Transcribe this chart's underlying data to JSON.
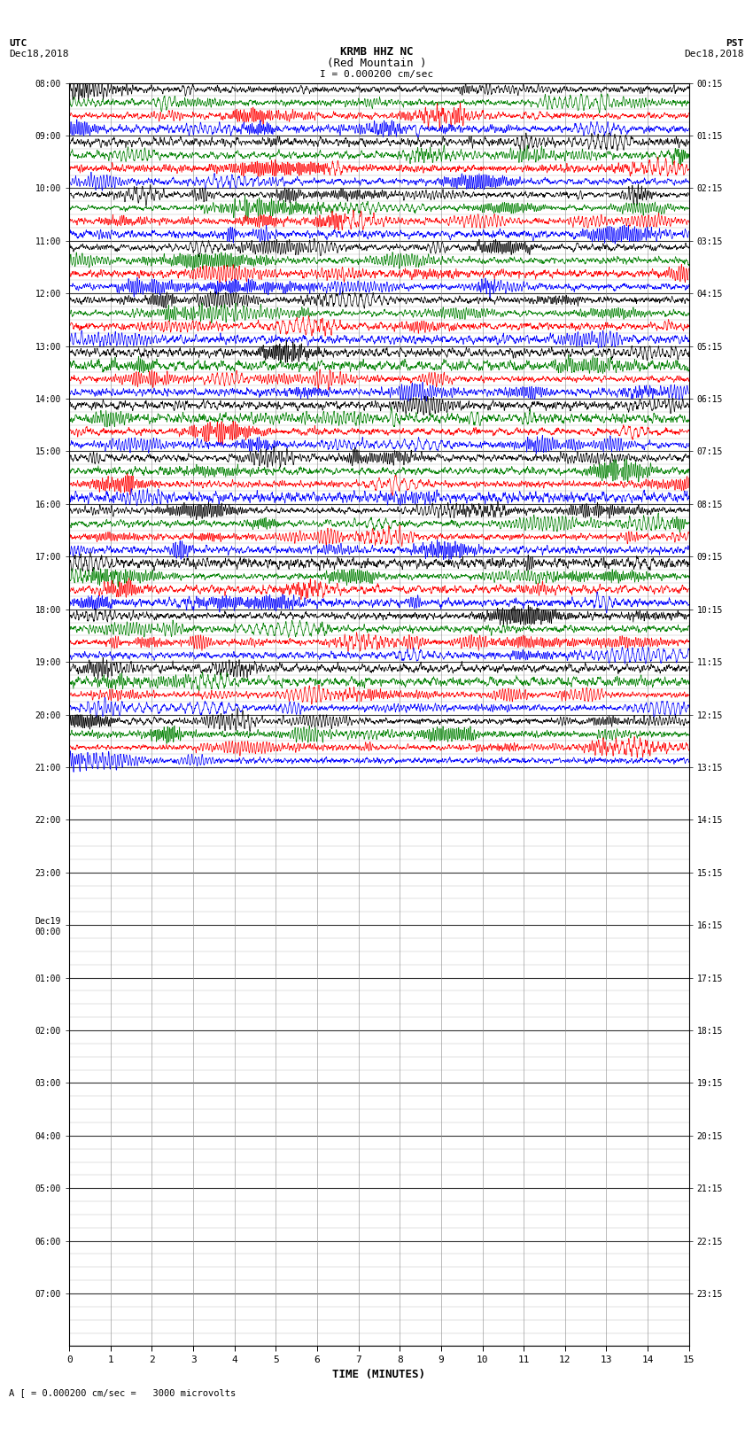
{
  "title_line1": "KRMB HHZ NC",
  "title_line2": "(Red Mountain )",
  "scale_label": "I = 0.000200 cm/sec",
  "left_header_line1": "UTC",
  "left_header_line2": "Dec18,2018",
  "right_header_line1": "PST",
  "right_header_line2": "Dec18,2018",
  "bottom_label": "TIME (MINUTES)",
  "bottom_note": "A [ = 0.000200 cm/sec =   3000 microvolts",
  "utc_times_labeled": [
    "08:00",
    "09:00",
    "10:00",
    "11:00",
    "12:00",
    "13:00",
    "14:00",
    "15:00",
    "16:00",
    "17:00",
    "18:00",
    "19:00",
    "20:00",
    "21:00",
    "22:00",
    "23:00",
    "Dec19\n00:00",
    "01:00",
    "02:00",
    "03:00",
    "04:00",
    "05:00",
    "06:00",
    "07:00"
  ],
  "pst_times_labeled": [
    "00:15",
    "01:15",
    "02:15",
    "03:15",
    "04:15",
    "05:15",
    "06:15",
    "07:15",
    "08:15",
    "09:15",
    "10:15",
    "11:15",
    "12:15",
    "13:15",
    "14:15",
    "15:15",
    "16:15",
    "17:15",
    "18:15",
    "19:15",
    "20:15",
    "21:15",
    "22:15",
    "23:15"
  ],
  "n_rows": 96,
  "active_rows": 52,
  "colors_cycle": [
    "black",
    "green",
    "red",
    "blue"
  ],
  "fig_width": 8.5,
  "fig_height": 16.13,
  "dpi": 100,
  "background_color": "white",
  "grid_color": "#888888",
  "x_ticks": [
    0,
    1,
    2,
    3,
    4,
    5,
    6,
    7,
    8,
    9,
    10,
    11,
    12,
    13,
    14,
    15
  ],
  "x_min": 0,
  "x_max": 15
}
